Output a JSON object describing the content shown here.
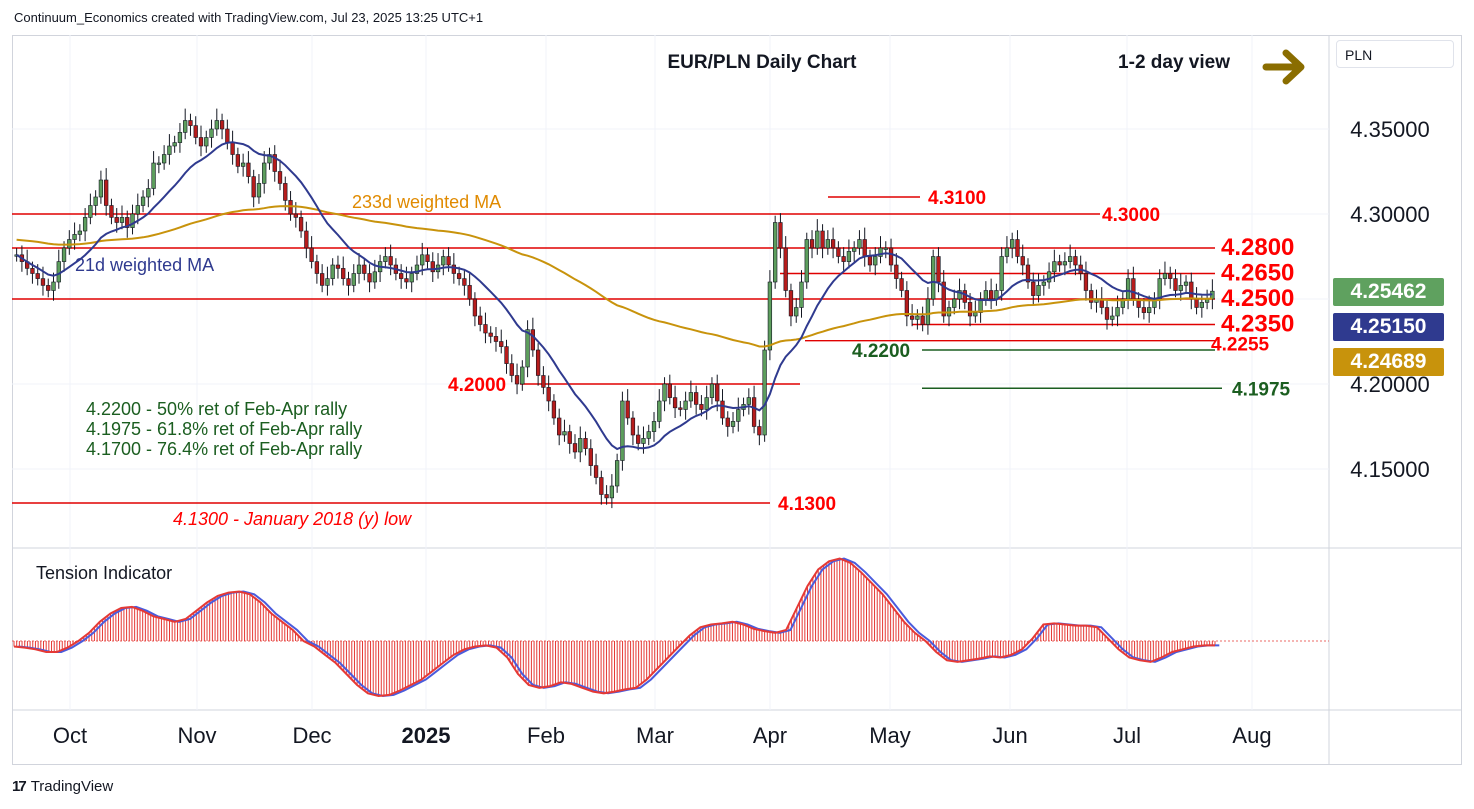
{
  "header": {
    "text": "Continuum_Economics created with TradingView.com, Jul 23, 2025 13:25 UTC+1"
  },
  "footer": {
    "brand": "TradingView",
    "mark": "17"
  },
  "currency": "PLN",
  "colors": {
    "up_candle": "#5d9e5d",
    "down_candle": "#b71c1c",
    "ma21": "#2f3a8f",
    "ma233": "#c8930c",
    "level_red": "#ff0000",
    "level_dark": "#1b5e20",
    "tension_fill": "#e53935",
    "tension_line": "#4a5bdc",
    "tag_last": "#5fa15f",
    "tag_ma21": "#2f3a8f",
    "tag_ma233": "#c8930c",
    "arrow": "#8a6d00"
  },
  "chart_data": [
    {
      "type": "candlestick",
      "title": "EUR/PLN Daily Chart",
      "subtitle": "1-2 day view",
      "arrow_icon": "right-arrow-icon",
      "y_ticks": [
        "4.35000",
        "4.30000",
        "4.20000",
        "4.15000"
      ],
      "x_ticks": [
        "Oct",
        "Nov",
        "Dec",
        "2025",
        "Feb",
        "Mar",
        "Apr",
        "May",
        "Jun",
        "Jul",
        "Aug"
      ],
      "ylim": [
        4.11,
        4.38
      ],
      "grid": true,
      "last_price_tags": [
        {
          "name": "last",
          "value": "4.25462",
          "color": "#5fa15f"
        },
        {
          "name": "21d",
          "value": "4.25150",
          "color": "#2f3a8f"
        },
        {
          "name": "233d",
          "value": "4.24689",
          "color": "#c8930c"
        }
      ],
      "series_labels": {
        "ma21": "21d weighted MA",
        "ma233": "233d weighted MA"
      },
      "levels": [
        {
          "value": 4.31,
          "label": "4.3100",
          "style": "red-small"
        },
        {
          "value": 4.3,
          "label": "4.3000",
          "style": "red-small"
        },
        {
          "value": 4.28,
          "label": "4.2800",
          "style": "red-big"
        },
        {
          "value": 4.265,
          "label": "4.2650",
          "style": "red-big"
        },
        {
          "value": 4.25,
          "label": "4.2500",
          "style": "red-big"
        },
        {
          "value": 4.235,
          "label": "4.2350",
          "style": "red-big"
        },
        {
          "value": 4.2255,
          "label": "4.2255",
          "style": "red-small"
        },
        {
          "value": 4.22,
          "label": "4.2200",
          "style": "green"
        },
        {
          "value": 4.1975,
          "label": "4.1975",
          "style": "green"
        },
        {
          "value": 4.2,
          "label": "4.2000",
          "style": "red-small"
        },
        {
          "value": 4.13,
          "label": "4.1300",
          "style": "red-small"
        }
      ],
      "low_note": "4.1300 - January 2018 (y) low",
      "retracement_notes": [
        "4.2200 - 50% ret of Feb-Apr rally",
        "4.1975 - 61.8% ret of Feb-Apr rally",
        "4.1700 - 76.4% ret of Feb-Apr rally"
      ],
      "close": [
        4.276,
        4.272,
        4.268,
        4.265,
        4.262,
        4.258,
        4.255,
        4.26,
        4.272,
        4.28,
        4.285,
        4.288,
        4.29,
        4.298,
        4.305,
        4.31,
        4.32,
        4.305,
        4.298,
        4.295,
        4.298,
        4.292,
        4.3,
        4.305,
        4.31,
        4.315,
        4.33,
        4.33,
        4.335,
        4.34,
        4.342,
        4.348,
        4.355,
        4.352,
        4.345,
        4.34,
        4.345,
        4.35,
        4.355,
        4.35,
        4.342,
        4.335,
        4.328,
        4.33,
        4.322,
        4.31,
        4.318,
        4.33,
        4.335,
        4.325,
        4.318,
        4.308,
        4.3,
        4.298,
        4.29,
        4.28,
        4.272,
        4.265,
        4.258,
        4.262,
        4.27,
        4.268,
        4.262,
        4.258,
        4.265,
        4.27,
        4.265,
        4.26,
        4.266,
        4.272,
        4.275,
        4.27,
        4.265,
        4.262,
        4.26,
        4.265,
        4.27,
        4.276,
        4.272,
        4.266,
        4.27,
        4.275,
        4.27,
        4.265,
        4.262,
        4.258,
        4.25,
        4.24,
        4.235,
        4.23,
        4.228,
        4.225,
        4.222,
        4.212,
        4.205,
        4.2,
        4.21,
        4.232,
        4.22,
        4.205,
        4.198,
        4.19,
        4.18,
        4.17,
        4.172,
        4.165,
        4.16,
        4.168,
        4.162,
        4.152,
        4.145,
        4.135,
        4.133,
        4.14,
        4.155,
        4.19,
        4.18,
        4.17,
        4.165,
        4.168,
        4.172,
        4.178,
        4.19,
        4.2,
        4.192,
        4.186,
        4.185,
        4.19,
        4.195,
        4.188,
        4.185,
        4.192,
        4.2,
        4.19,
        4.18,
        4.175,
        4.178,
        4.185,
        4.188,
        4.192,
        4.175,
        4.17,
        4.22,
        4.26,
        4.295,
        4.28,
        4.255,
        4.24,
        4.245,
        4.26,
        4.285,
        4.28,
        4.29,
        4.28,
        4.285,
        4.28,
        4.275,
        4.272,
        4.278,
        4.28,
        4.285,
        4.275,
        4.27,
        4.275,
        4.28,
        4.28,
        4.27,
        4.262,
        4.255,
        4.24,
        4.238,
        4.24,
        4.235,
        4.25,
        4.275,
        4.26,
        4.24,
        4.245,
        4.25,
        4.255,
        4.248,
        4.24,
        4.242,
        4.25,
        4.255,
        4.25,
        4.255,
        4.275,
        4.28,
        4.285,
        4.275,
        4.27,
        4.26,
        4.252,
        4.258,
        4.26,
        4.266,
        4.272,
        4.27,
        4.272,
        4.275,
        4.27,
        4.265,
        4.255,
        4.248,
        4.25,
        4.245,
        4.238,
        4.24,
        4.245,
        4.25,
        4.262,
        4.25,
        4.245,
        4.242,
        4.245,
        4.25,
        4.262,
        4.265,
        4.262,
        4.255,
        4.258,
        4.26,
        4.25,
        4.245,
        4.248,
        4.25,
        4.2546
      ],
      "tension": {
        "label": "Tension Indicator",
        "values": [
          -0.1,
          -0.12,
          -0.15,
          -0.2,
          -0.2,
          -0.12,
          0.0,
          0.15,
          0.35,
          0.5,
          0.6,
          0.62,
          0.55,
          0.45,
          0.4,
          0.35,
          0.4,
          0.55,
          0.7,
          0.82,
          0.88,
          0.9,
          0.85,
          0.7,
          0.5,
          0.35,
          0.2,
          0.0,
          -0.1,
          -0.25,
          -0.4,
          -0.6,
          -0.8,
          -0.95,
          -1.0,
          -0.98,
          -0.9,
          -0.8,
          -0.7,
          -0.55,
          -0.4,
          -0.25,
          -0.15,
          -0.1,
          -0.08,
          -0.12,
          -0.3,
          -0.6,
          -0.8,
          -0.85,
          -0.82,
          -0.75,
          -0.78,
          -0.85,
          -0.92,
          -0.95,
          -0.92,
          -0.88,
          -0.85,
          -0.7,
          -0.5,
          -0.3,
          -0.1,
          0.1,
          0.25,
          0.3,
          0.32,
          0.35,
          0.3,
          0.22,
          0.18,
          0.15,
          0.2,
          0.6,
          1.0,
          1.3,
          1.45,
          1.5,
          1.42,
          1.25,
          1.05,
          0.85,
          0.6,
          0.35,
          0.15,
          0.0,
          -0.2,
          -0.35,
          -0.38,
          -0.35,
          -0.32,
          -0.28,
          -0.3,
          -0.25,
          -0.15,
          0.05,
          0.3,
          0.32,
          0.3,
          0.28,
          0.28,
          0.25,
          0.05,
          -0.15,
          -0.3,
          -0.35,
          -0.38,
          -0.3,
          -0.2,
          -0.15,
          -0.1,
          -0.08,
          -0.08
        ],
        "xlim": [
          0,
          112
        ]
      }
    }
  ]
}
